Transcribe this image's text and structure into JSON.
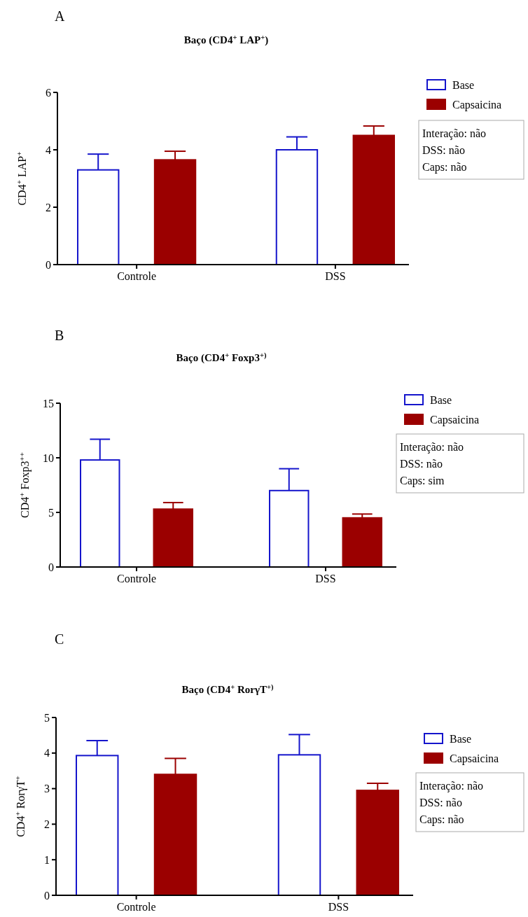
{
  "chart_data": [
    {
      "type": "bar",
      "title": "Baço (CD4$^{+}$ LAP$^{+}$)",
      "ylabel": "CD4$^{+}$ LAP$^{+}$",
      "categories": [
        "Controle",
        "DSS"
      ],
      "ylim": [
        0,
        6
      ],
      "yticks": [
        0,
        2,
        4,
        6
      ],
      "legend": "top right",
      "annotations": [
        "A",
        "Interação: não",
        "DSS: não",
        "Caps: não"
      ],
      "series": [
        {
          "name": "Base",
          "color": "#1515cc",
          "values": [
            3.3,
            4.0
          ],
          "errors": [
            [
              3.3,
              3.85
            ],
            [
              4.0,
              4.45
            ]
          ]
        },
        {
          "name": "Capsaicina",
          "color": "#9b0000",
          "values": [
            3.65,
            4.5
          ],
          "errors": [
            [
              3.65,
              3.95
            ],
            [
              4.5,
              4.83
            ]
          ]
        }
      ]
    },
    {
      "type": "bar",
      "title": "Baço (CD4$^{+}$ Foxp3$^{+)}$",
      "ylabel": "CD4$^{+}$ Foxp3$^{++}$",
      "categories": [
        "Controle",
        "DSS"
      ],
      "ylim": [
        0,
        15
      ],
      "yticks": [
        0,
        5,
        10,
        15
      ],
      "legend": "top right",
      "annotations": [
        "B",
        "Interação: não",
        "DSS: não",
        "Caps: sim"
      ],
      "series": [
        {
          "name": "Base",
          "color": "#1515cc",
          "values": [
            9.8,
            7.0
          ],
          "errors": [
            [
              9.8,
              11.7
            ],
            [
              7.0,
              9.0
            ]
          ]
        },
        {
          "name": "Capsaicina",
          "color": "#9b0000",
          "values": [
            5.3,
            4.5
          ],
          "errors": [
            [
              5.3,
              5.9
            ],
            [
              4.5,
              4.85
            ]
          ]
        }
      ]
    },
    {
      "type": "bar",
      "title": "Baço (CD4$^{+}$ RorγT$^{+)}$",
      "ylabel": "CD4$^{+}$ RorγT$^{+}$",
      "categories": [
        "Controle",
        "DSS"
      ],
      "ylim": [
        0,
        5
      ],
      "yticks": [
        0,
        1,
        2,
        3,
        4,
        5
      ],
      "legend": "top right",
      "annotations": [
        "C",
        "Interação: não",
        "DSS: não",
        "Caps: não"
      ],
      "series": [
        {
          "name": "Base",
          "color": "#1515cc",
          "values": [
            3.93,
            3.95
          ],
          "errors": [
            [
              3.93,
              4.35
            ],
            [
              3.95,
              4.52
            ]
          ]
        },
        {
          "name": "Capsaicina",
          "color": "#9b0000",
          "values": [
            3.4,
            2.95
          ],
          "errors": [
            [
              3.4,
              3.85
            ],
            [
              2.95,
              3.15
            ]
          ]
        }
      ]
    }
  ]
}
